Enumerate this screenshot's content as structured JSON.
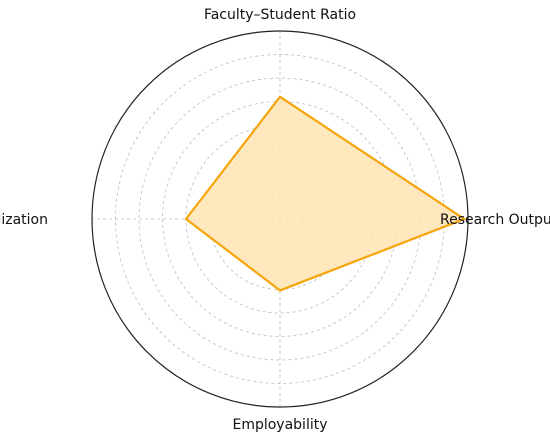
{
  "chart_data": {
    "type": "radar",
    "title": "",
    "axes": [
      "Faculty–Student Ratio",
      "Research Output",
      "Employability",
      "Internationalization"
    ],
    "series": [
      {
        "values": [
          0.65,
          0.98,
          0.38,
          0.5
        ]
      }
    ],
    "range": [
      0,
      1
    ],
    "ring_count": 8,
    "grid": true,
    "colors": {
      "line": "#f5a50a",
      "fill": "#ffe3b3",
      "outer_circle": "#222222",
      "grid": "#bdbdbd"
    }
  }
}
